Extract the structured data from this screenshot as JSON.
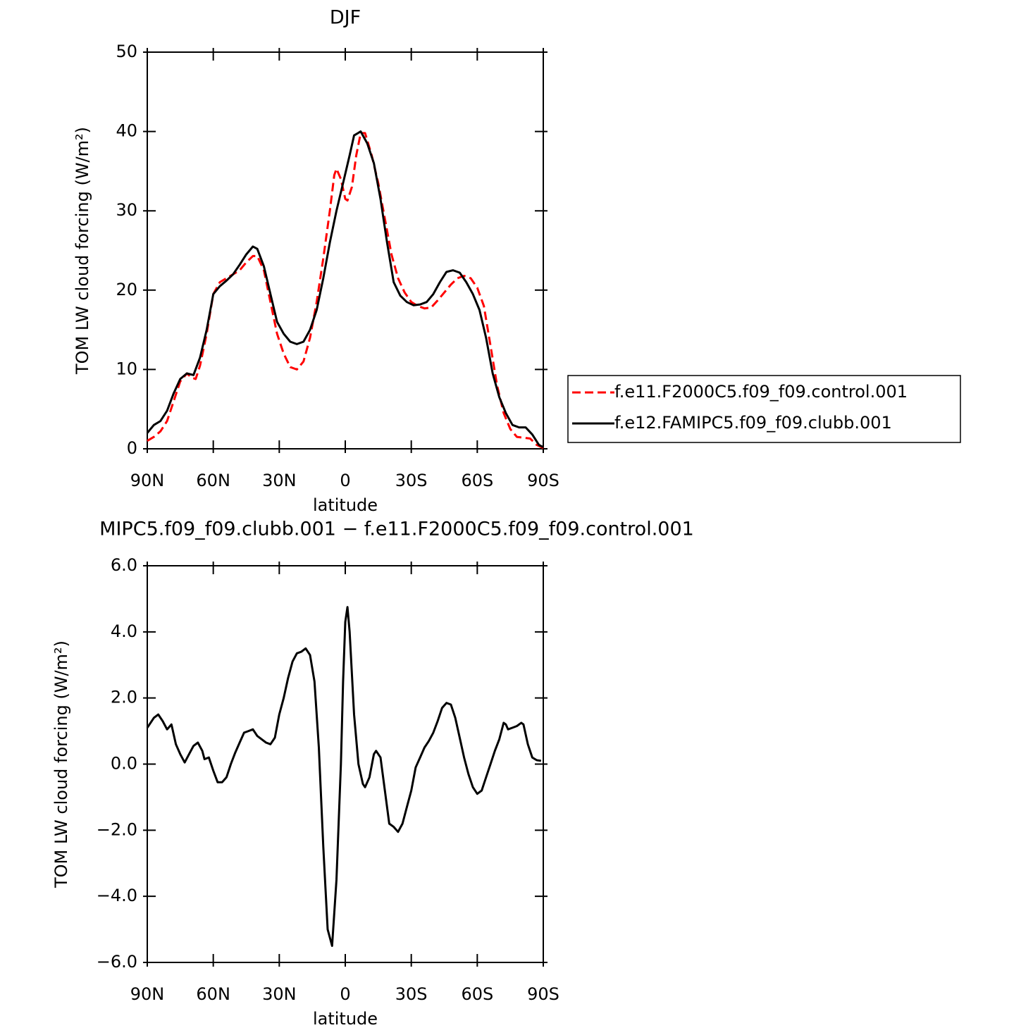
{
  "chart_data": [
    {
      "type": "line",
      "title": "DJF",
      "xlabel": "latitude",
      "ylabel": "TOM LW cloud forcing (W/m²)",
      "xlim": [
        90,
        -90
      ],
      "xticks": [
        {
          "value": 90,
          "label": "90N"
        },
        {
          "value": 60,
          "label": "60N"
        },
        {
          "value": 30,
          "label": "30N"
        },
        0,
        {
          "value": -30,
          "label": "30S"
        },
        {
          "value": -60,
          "label": "60S"
        },
        {
          "value": -90,
          "label": "90S"
        }
      ],
      "ylim": [
        0,
        50
      ],
      "yticks": [
        0,
        10,
        20,
        30,
        40,
        50
      ],
      "legend": "right",
      "series": [
        {
          "name": "f.e11.F2000C5.f09_f09.control.001",
          "color": "#ff0000",
          "dash": "dashed",
          "x": [
            90,
            87,
            84,
            81,
            78,
            75,
            72,
            70,
            68,
            66,
            63,
            60,
            57,
            54,
            51,
            48,
            45,
            42,
            40,
            37,
            34,
            31,
            28,
            25,
            22,
            19,
            16,
            13,
            10,
            7,
            5,
            4,
            2,
            0,
            -1,
            -3,
            -5,
            -7,
            -9,
            -12,
            -15,
            -18,
            -21,
            -24,
            -27,
            -30,
            -33,
            -36,
            -39,
            -42,
            -45,
            -48,
            -51,
            -54,
            -57,
            -60,
            -63,
            -66,
            -69,
            -72,
            -75,
            -78,
            -81,
            -84,
            -87,
            -90
          ],
          "values": [
            1.0,
            1.5,
            2.2,
            3.5,
            6,
            8.5,
            9.5,
            9,
            8.8,
            10.5,
            14.5,
            19.5,
            21,
            21.5,
            22,
            22.5,
            23.5,
            24.3,
            24.3,
            22.5,
            18.5,
            14.5,
            12,
            10.3,
            10,
            11,
            14,
            18.5,
            24,
            30,
            34.5,
            35.3,
            34,
            31.5,
            31.3,
            33,
            37,
            39.8,
            39.8,
            37,
            33.5,
            29,
            24.5,
            21.5,
            19.7,
            18.5,
            18,
            17.7,
            17.8,
            18.7,
            19.7,
            20.7,
            21.5,
            21.8,
            21.5,
            20.3,
            18,
            13,
            8,
            4.5,
            2.5,
            1.5,
            1.4,
            1.3,
            0.5,
            0.1
          ]
        },
        {
          "name": "f.e12.FAMIPC5.f09_f09.clubb.001",
          "color": "#000000",
          "dash": "solid",
          "x": [
            90,
            87,
            84,
            81,
            78,
            75,
            72,
            69,
            66,
            63,
            60,
            57,
            54,
            51,
            48,
            45,
            42,
            40,
            37,
            34,
            31,
            28,
            25,
            22,
            19,
            16,
            13,
            10,
            7,
            4,
            1,
            -2,
            -4,
            -7,
            -10,
            -13,
            -16,
            -19,
            -22,
            -25,
            -28,
            -31,
            -34,
            -37,
            -40,
            -43,
            -46,
            -49,
            -52,
            -55,
            -58,
            -61,
            -64,
            -67,
            -70,
            -73,
            -76,
            -79,
            -82,
            -85,
            -88,
            -90
          ],
          "values": [
            2.0,
            3.0,
            3.5,
            4.8,
            7.0,
            8.8,
            9.5,
            9.3,
            11.5,
            15,
            19.5,
            20.5,
            21.2,
            22,
            23.2,
            24.5,
            25.5,
            25.2,
            23,
            19.5,
            16,
            14.5,
            13.5,
            13.2,
            13.5,
            15,
            17.5,
            21.5,
            26,
            30,
            33.5,
            37,
            39.5,
            40,
            38.5,
            36,
            31.5,
            26,
            21,
            19.3,
            18.5,
            18.1,
            18.2,
            18.5,
            19.5,
            21,
            22.3,
            22.5,
            22.2,
            21,
            19.5,
            17.5,
            14,
            9.5,
            6.5,
            4.5,
            3,
            2.7,
            2.7,
            1.8,
            0.5,
            0.2
          ]
        }
      ]
    },
    {
      "type": "line",
      "title": "MIPC5.f09_f09.clubb.001 − f.e11.F2000C5.f09_f09.control.001",
      "xlabel": "latitude",
      "ylabel": "TOM LW cloud forcing (W/m²)",
      "xlim": [
        90,
        -90
      ],
      "xticks": [
        {
          "value": 90,
          "label": "90N"
        },
        {
          "value": 60,
          "label": "60N"
        },
        {
          "value": 30,
          "label": "30N"
        },
        0,
        {
          "value": -30,
          "label": "30S"
        },
        {
          "value": -60,
          "label": "60S"
        },
        {
          "value": -90,
          "label": "90S"
        }
      ],
      "ylim": [
        -6,
        6
      ],
      "yticks": [
        {
          "value": -6,
          "label": "−6.0"
        },
        {
          "value": -4,
          "label": "−4.0"
        },
        {
          "value": -2,
          "label": "−2.0"
        },
        {
          "value": 0,
          "label": "0.0"
        },
        {
          "value": 2,
          "label": "2.0"
        },
        {
          "value": 4,
          "label": "4.0"
        },
        {
          "value": 6,
          "label": "6.0"
        }
      ],
      "color": "#000000",
      "x": [
        90,
        87,
        85,
        83,
        81,
        79,
        77,
        75,
        73,
        71,
        69,
        67,
        65,
        64,
        62,
        60,
        58,
        56,
        54,
        52,
        50,
        48,
        46,
        44,
        42,
        40,
        38,
        36,
        34,
        32,
        30,
        28,
        26,
        24,
        22,
        20,
        18,
        16,
        14,
        12,
        10,
        8,
        6,
        4,
        2,
        1,
        0,
        -1,
        -2,
        -4,
        -6,
        -8,
        -9,
        -11,
        -13,
        -14,
        -16,
        -18,
        -20,
        -22,
        -24,
        -26,
        -28,
        -30,
        -32,
        -34,
        -36,
        -38,
        -40,
        -42,
        -44,
        -46,
        -48,
        -50,
        -52,
        -54,
        -56,
        -58,
        -60,
        -62,
        -64,
        -66,
        -68,
        -70,
        -72,
        -73,
        -74,
        -76,
        -78,
        -80,
        -81,
        -83,
        -85,
        -87,
        -89
      ],
      "values": [
        1.1,
        1.4,
        1.5,
        1.3,
        1.05,
        1.2,
        0.6,
        0.3,
        0.05,
        0.3,
        0.55,
        0.65,
        0.4,
        0.15,
        0.2,
        -0.2,
        -0.55,
        -0.55,
        -0.4,
        0,
        0.35,
        0.65,
        0.95,
        1.0,
        1.05,
        0.85,
        0.75,
        0.65,
        0.6,
        0.8,
        1.5,
        2.0,
        2.6,
        3.1,
        3.35,
        3.4,
        3.5,
        3.3,
        2.5,
        0.5,
        -2.5,
        -5.0,
        -5.5,
        -3.5,
        0,
        2.5,
        4.3,
        4.75,
        4.0,
        1.5,
        0,
        -0.6,
        -0.7,
        -0.4,
        0.3,
        0.4,
        0.2,
        -0.8,
        -1.8,
        -1.9,
        -2.05,
        -1.8,
        -1.3,
        -0.8,
        -0.1,
        0.2,
        0.5,
        0.7,
        0.95,
        1.3,
        1.7,
        1.85,
        1.8,
        1.4,
        0.8,
        0.2,
        -0.3,
        -0.7,
        -0.9,
        -0.8,
        -0.4,
        0,
        0.4,
        0.75,
        1.25,
        1.2,
        1.05,
        1.1,
        1.15,
        1.25,
        1.2,
        0.6,
        0.2,
        0.12,
        0.1
      ]
    }
  ]
}
